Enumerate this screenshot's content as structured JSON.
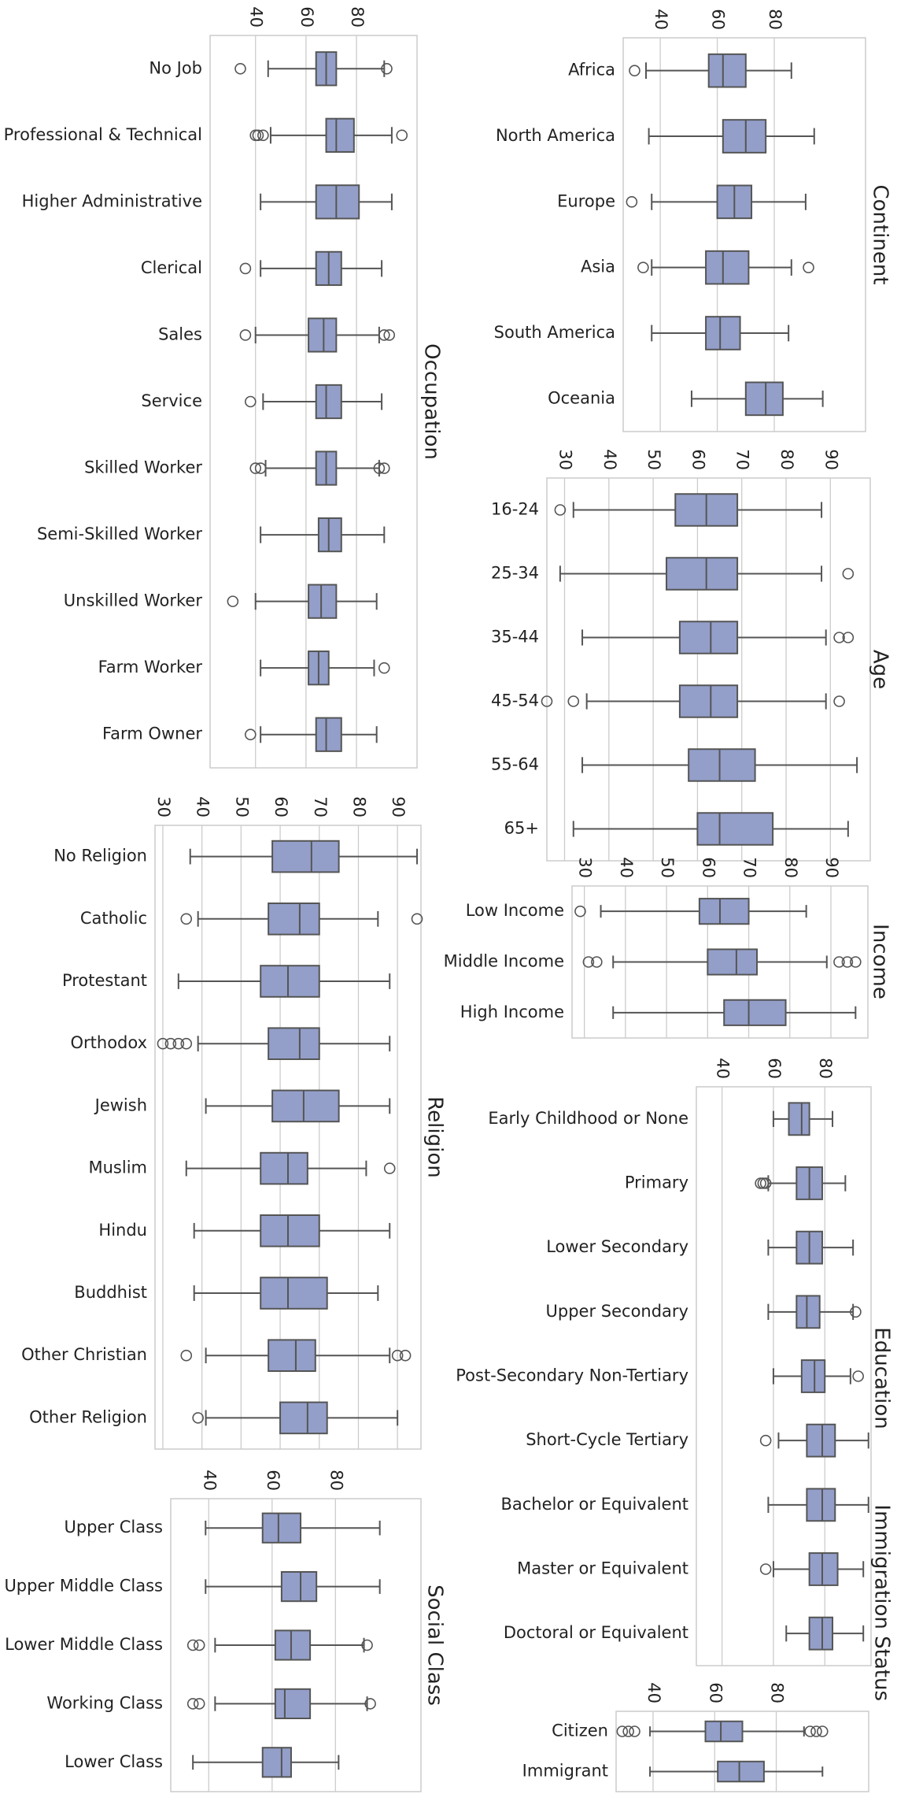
{
  "figure": {
    "colors": {
      "box": "#939fc9",
      "edge": "#555555",
      "grid": "#cccccc",
      "frame": "#cccccc"
    }
  },
  "chart_data": [
    {
      "type": "box",
      "title": "Occupation",
      "ticks": [
        40,
        60,
        80
      ],
      "xlim": [
        22,
        104
      ],
      "categories": [
        "No Job",
        "Professional & Technical",
        "Higher Administrative",
        "Clerical",
        "Sales",
        "Service",
        "Skilled Worker",
        "Semi-Skilled Worker",
        "Unskilled Worker",
        "Farm Worker",
        "Farm Owner"
      ],
      "stats": [
        {
          "whislo": 45,
          "q1": 64,
          "med": 68,
          "q3": 72,
          "whishi": 91,
          "fliers": [
            34,
            92
          ]
        },
        {
          "whislo": 46,
          "q1": 68,
          "med": 72,
          "q3": 79,
          "whishi": 94,
          "fliers": [
            40,
            41,
            43,
            98
          ]
        },
        {
          "whislo": 42,
          "q1": 64,
          "med": 72,
          "q3": 81,
          "whishi": 94,
          "fliers": []
        },
        {
          "whislo": 42,
          "q1": 64,
          "med": 69,
          "q3": 74,
          "whishi": 90,
          "fliers": [
            36
          ]
        },
        {
          "whislo": 40,
          "q1": 61,
          "med": 67,
          "q3": 72,
          "whishi": 89,
          "fliers": [
            36,
            91,
            93
          ]
        },
        {
          "whislo": 43,
          "q1": 64,
          "med": 68,
          "q3": 74,
          "whishi": 90,
          "fliers": [
            38
          ]
        },
        {
          "whislo": 44,
          "q1": 64,
          "med": 68,
          "q3": 72,
          "whishi": 89,
          "fliers": [
            40,
            42,
            89,
            91
          ]
        },
        {
          "whislo": 42,
          "q1": 65,
          "med": 69,
          "q3": 74,
          "whishi": 91,
          "fliers": []
        },
        {
          "whislo": 40,
          "q1": 61,
          "med": 66,
          "q3": 72,
          "whishi": 88,
          "fliers": [
            31
          ]
        },
        {
          "whislo": 42,
          "q1": 61,
          "med": 65,
          "q3": 69,
          "whishi": 87,
          "fliers": [
            91
          ]
        },
        {
          "whislo": 42,
          "q1": 64,
          "med": 68,
          "q3": 74,
          "whishi": 88,
          "fliers": [
            38
          ]
        }
      ]
    },
    {
      "type": "box",
      "title": "Continent",
      "ticks": [
        40,
        60,
        80
      ],
      "xlim": [
        27,
        112
      ],
      "categories": [
        "Africa",
        "North America",
        "Europe",
        "Asia",
        "South America",
        "Oceania"
      ],
      "stats": [
        {
          "whislo": 35,
          "q1": 57,
          "med": 62,
          "q3": 70,
          "whishi": 86,
          "fliers": [
            31
          ]
        },
        {
          "whislo": 36,
          "q1": 62,
          "med": 70,
          "q3": 77,
          "whishi": 94,
          "fliers": []
        },
        {
          "whislo": 37,
          "q1": 60,
          "med": 66,
          "q3": 72,
          "whishi": 91,
          "fliers": [
            30
          ]
        },
        {
          "whislo": 37,
          "q1": 56,
          "med": 62,
          "q3": 71,
          "whishi": 86,
          "fliers": [
            34,
            92
          ]
        },
        {
          "whislo": 37,
          "q1": 56,
          "med": 61,
          "q3": 68,
          "whishi": 85,
          "fliers": []
        },
        {
          "whislo": 51,
          "q1": 70,
          "med": 77,
          "q3": 83,
          "whishi": 97,
          "fliers": []
        }
      ]
    },
    {
      "type": "box",
      "title": "Age",
      "ticks": [
        30,
        40,
        50,
        60,
        70,
        80,
        90
      ],
      "xlim": [
        26,
        99
      ],
      "categories": [
        "16-24",
        "25-34",
        "35-44",
        "45-54",
        "55-64",
        "65+"
      ],
      "stats": [
        {
          "whislo": 32,
          "q1": 55,
          "med": 62,
          "q3": 69,
          "whishi": 88,
          "fliers": [
            29
          ]
        },
        {
          "whislo": 29,
          "q1": 53,
          "med": 62,
          "q3": 69,
          "whishi": 88,
          "fliers": [
            94
          ]
        },
        {
          "whislo": 34,
          "q1": 56,
          "med": 63,
          "q3": 69,
          "whishi": 89,
          "fliers": [
            92,
            94
          ]
        },
        {
          "whislo": 35,
          "q1": 56,
          "med": 63,
          "q3": 69,
          "whishi": 89,
          "fliers": [
            26,
            32,
            92
          ]
        },
        {
          "whislo": 34,
          "q1": 58,
          "med": 65,
          "q3": 73,
          "whishi": 96,
          "fliers": []
        },
        {
          "whislo": 32,
          "q1": 60,
          "med": 65,
          "q3": 77,
          "whishi": 94,
          "fliers": []
        }
      ]
    },
    {
      "type": "box",
      "title": "Income",
      "ticks": [
        30,
        40,
        50,
        60,
        70,
        80,
        90
      ],
      "xlim": [
        27,
        99
      ],
      "categories": [
        "Low Income",
        "Middle Income",
        "High Income"
      ],
      "stats": [
        {
          "whislo": 34,
          "q1": 58,
          "med": 63,
          "q3": 70,
          "whishi": 84,
          "fliers": [
            29
          ]
        },
        {
          "whislo": 37,
          "q1": 60,
          "med": 67,
          "q3": 72,
          "whishi": 89,
          "fliers": [
            31,
            33,
            92,
            94,
            96
          ]
        },
        {
          "whislo": 37,
          "q1": 64,
          "med": 70,
          "q3": 79,
          "whishi": 96,
          "fliers": []
        }
      ]
    },
    {
      "type": "box",
      "title": "Religion",
      "ticks": [
        30,
        40,
        50,
        60,
        70,
        80,
        90
      ],
      "xlim": [
        28,
        96
      ],
      "categories": [
        "No Religion",
        "Catholic",
        "Protestant",
        "Orthodox",
        "Jewish",
        "Muslim",
        "Hindu",
        "Buddhist",
        "Other Christian",
        "Other Religion"
      ],
      "stats": [
        {
          "whislo": 37,
          "q1": 58,
          "med": 68,
          "q3": 75,
          "whishi": 95,
          "fliers": []
        },
        {
          "whislo": 39,
          "q1": 57,
          "med": 65,
          "q3": 70,
          "whishi": 85,
          "fliers": [
            36,
            95
          ]
        },
        {
          "whislo": 34,
          "q1": 55,
          "med": 62,
          "q3": 70,
          "whishi": 88,
          "fliers": []
        },
        {
          "whislo": 39,
          "q1": 57,
          "med": 65,
          "q3": 70,
          "whishi": 88,
          "fliers": [
            30,
            32,
            34,
            36
          ]
        },
        {
          "whislo": 41,
          "q1": 58,
          "med": 66,
          "q3": 75,
          "whishi": 88,
          "fliers": []
        },
        {
          "whislo": 36,
          "q1": 55,
          "med": 62,
          "q3": 67,
          "whishi": 82,
          "fliers": [
            88
          ]
        },
        {
          "whislo": 38,
          "q1": 55,
          "med": 62,
          "q3": 70,
          "whishi": 88,
          "fliers": []
        },
        {
          "whislo": 38,
          "q1": 55,
          "med": 62,
          "q3": 72,
          "whishi": 85,
          "fliers": []
        },
        {
          "whislo": 41,
          "q1": 57,
          "med": 64,
          "q3": 69,
          "whishi": 88,
          "fliers": [
            36,
            90,
            92
          ]
        },
        {
          "whislo": 41,
          "q1": 60,
          "med": 67,
          "q3": 72,
          "whishi": 90,
          "fliers": [
            39
          ]
        }
      ]
    },
    {
      "type": "box",
      "title": "Education",
      "ticks": [
        40,
        60,
        80
      ],
      "xlim": [
        30,
        98
      ],
      "categories": [
        "Early Childhood or None",
        "Primary",
        "Lower Secondary",
        "Upper Secondary",
        "Post-Secondary Non-Tertiary",
        "Short-Cycle Tertiary",
        "Bachelor or Equivalent",
        "Master or Equivalent",
        "Doctoral or Equivalent"
      ],
      "stats": [
        {
          "whislo": 60,
          "q1": 66,
          "med": 71,
          "q3": 74,
          "whishi": 83,
          "fliers": []
        },
        {
          "whislo": 58,
          "q1": 69,
          "med": 74,
          "q3": 79,
          "whishi": 88,
          "fliers": [
            55,
            56,
            57
          ]
        },
        {
          "whislo": 58,
          "q1": 69,
          "med": 74,
          "q3": 79,
          "whishi": 91,
          "fliers": []
        },
        {
          "whislo": 58,
          "q1": 69,
          "med": 73,
          "q3": 78,
          "whishi": 91,
          "fliers": [
            92
          ]
        },
        {
          "whislo": 60,
          "q1": 71,
          "med": 76,
          "q3": 80,
          "whishi": 90,
          "fliers": [
            93
          ]
        },
        {
          "whislo": 62,
          "q1": 73,
          "med": 79,
          "q3": 84,
          "whishi": 97,
          "fliers": [
            57
          ]
        },
        {
          "whislo": 58,
          "q1": 73,
          "med": 79,
          "q3": 84,
          "whishi": 97,
          "fliers": []
        },
        {
          "whislo": 60,
          "q1": 74,
          "med": 79,
          "q3": 85,
          "whishi": 95,
          "fliers": [
            57
          ]
        },
        {
          "whislo": 65,
          "q1": 74,
          "med": 79,
          "q3": 83,
          "whishi": 95,
          "fliers": []
        }
      ]
    },
    {
      "type": "box",
      "title": "Social Class",
      "ticks": [
        40,
        60,
        80
      ],
      "xlim": [
        28,
        107
      ],
      "categories": [
        "Upper Class",
        "Upper Middle Class",
        "Lower Middle Class",
        "Working Class",
        "Lower Class"
      ],
      "stats": [
        {
          "whislo": 39,
          "q1": 57,
          "med": 62,
          "q3": 69,
          "whishi": 94,
          "fliers": []
        },
        {
          "whislo": 39,
          "q1": 63,
          "med": 69,
          "q3": 74,
          "whishi": 94,
          "fliers": []
        },
        {
          "whislo": 42,
          "q1": 61,
          "med": 66,
          "q3": 72,
          "whishi": 89,
          "fliers": [
            35,
            37,
            90
          ]
        },
        {
          "whislo": 42,
          "q1": 61,
          "med": 64,
          "q3": 72,
          "whishi": 90,
          "fliers": [
            35,
            37,
            91
          ]
        },
        {
          "whislo": 35,
          "q1": 57,
          "med": 63,
          "q3": 66,
          "whishi": 81,
          "fliers": []
        }
      ]
    },
    {
      "type": "box",
      "title": "Immigration Status",
      "ticks": [
        40,
        60,
        80
      ],
      "xlim": [
        28,
        110
      ],
      "categories": [
        "Citizen",
        "Immigrant"
      ],
      "stats": [
        {
          "whislo": 39,
          "q1": 57,
          "med": 62,
          "q3": 69,
          "whishi": 89,
          "fliers": [
            30,
            32,
            34,
            91,
            93,
            95
          ]
        },
        {
          "whislo": 39,
          "q1": 61,
          "med": 68,
          "q3": 76,
          "whishi": 95,
          "fliers": []
        }
      ]
    }
  ]
}
